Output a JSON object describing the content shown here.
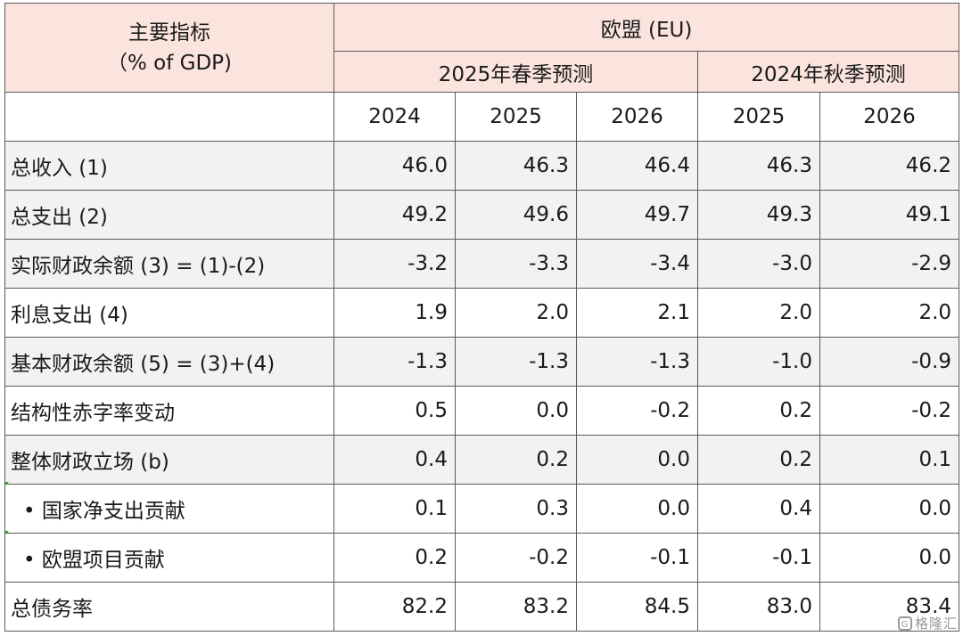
{
  "header": {
    "indicator_line1": "主要指标",
    "indicator_line2": "（% of GDP)",
    "region": "欧盟 (EU)",
    "spring_forecast": "2025年春季预测",
    "autumn_forecast": "2024年秋季预测",
    "years": [
      "2024",
      "2025",
      "2026",
      "2025",
      "2026"
    ]
  },
  "rows": [
    {
      "label": "总收入 (1)",
      "values": [
        "46.0",
        "46.3",
        "46.4",
        "46.3",
        "46.2"
      ]
    },
    {
      "label": "总支出 (2)",
      "values": [
        "49.2",
        "49.6",
        "49.7",
        "49.3",
        "49.1"
      ]
    },
    {
      "label": "实际财政余额 (3) = (1)-(2)",
      "values": [
        "-3.2",
        "-3.3",
        "-3.4",
        "-3.0",
        "-2.9"
      ]
    },
    {
      "label": "利息支出 (4)",
      "values": [
        "1.9",
        "2.0",
        "2.1",
        "2.0",
        "2.0"
      ]
    },
    {
      "label": "基本财政余额 (5) = (3)+(4)",
      "values": [
        "-1.3",
        "-1.3",
        "-1.3",
        "-1.0",
        "-0.9"
      ]
    },
    {
      "label": "结构性赤字率变动",
      "values": [
        "0.5",
        "0.0",
        "-0.2",
        "0.2",
        "-0.2"
      ]
    },
    {
      "label": "整体财政立场 (b)",
      "values": [
        "0.4",
        "0.2",
        "0.0",
        "0.2",
        "0.1"
      ]
    },
    {
      "label": "• 国家净支出贡献",
      "values": [
        "0.1",
        "0.3",
        "0.0",
        "0.4",
        "0.0"
      ]
    },
    {
      "label": "• 欧盟项目贡献",
      "values": [
        "0.2",
        "-0.2",
        "-0.1",
        "-0.1",
        "0.0"
      ]
    },
    {
      "label": "总债务率",
      "values": [
        "82.2",
        "83.2",
        "84.5",
        "83.0",
        "83.4"
      ]
    }
  ],
  "watermark": {
    "icon": "gelonghui-logo-icon",
    "text": "格隆汇"
  }
}
